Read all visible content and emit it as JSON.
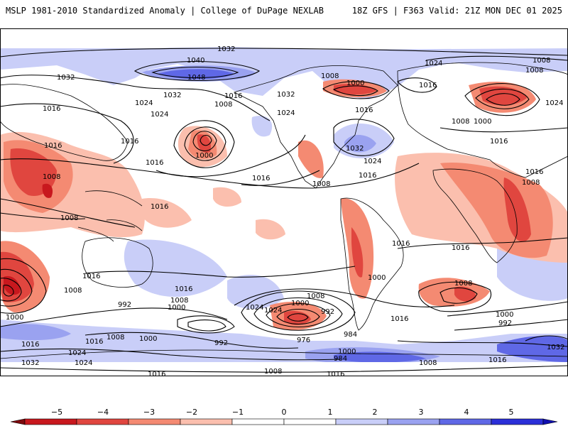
{
  "header": {
    "left_title": "MSLP 1981-2010 Standardized Anomaly | College of DuPage NEXLAB",
    "right_title": "18Z GFS | F363 Valid: 21Z MON DEC 01 2025"
  },
  "colors": {
    "neg_strong": "#c8181e",
    "neg_mid": "#e0463f",
    "neg_light": "#f48a72",
    "neg_pale": "#fbbfae",
    "pos_pale": "#c9cef8",
    "pos_light": "#9aa2f0",
    "pos_mid": "#5f68e6",
    "contour": "#000000",
    "coast": "#000000"
  },
  "colorbar": {
    "labels": [
      "−5",
      "−4",
      "−3",
      "−2",
      "−1",
      "0",
      "1",
      "2",
      "3",
      "4",
      "5"
    ],
    "colors": [
      "#7d0a0e",
      "#c8181e",
      "#e0463f",
      "#f48a72",
      "#fbbfae",
      "#ffffff",
      "#ffffff",
      "#c9cef8",
      "#9aa2f0",
      "#5f68e6",
      "#2b2fd8",
      "#1010b0"
    ]
  },
  "isobar_labels": [
    {
      "text": "1032"
    },
    {
      "text": "1040"
    },
    {
      "text": "1048"
    },
    {
      "text": "1032"
    },
    {
      "text": "1024"
    },
    {
      "text": "1016"
    },
    {
      "text": "1024"
    },
    {
      "text": "1032"
    },
    {
      "text": "1016"
    },
    {
      "text": "1008"
    },
    {
      "text": "1032"
    },
    {
      "text": "1024"
    },
    {
      "text": "1016"
    },
    {
      "text": "1000"
    },
    {
      "text": "1016"
    },
    {
      "text": "1008"
    },
    {
      "text": "1016"
    },
    {
      "text": "1000"
    },
    {
      "text": "1024"
    },
    {
      "text": "1016"
    },
    {
      "text": "1032"
    },
    {
      "text": "1024"
    },
    {
      "text": "1016"
    },
    {
      "text": "1008"
    },
    {
      "text": "1016"
    },
    {
      "text": "1008"
    },
    {
      "text": "1024"
    },
    {
      "text": "1016"
    },
    {
      "text": "1008"
    },
    {
      "text": "1016"
    },
    {
      "text": "1008"
    },
    {
      "text": "1000"
    },
    {
      "text": "1016"
    },
    {
      "text": "1008"
    },
    {
      "text": "1016"
    },
    {
      "text": "1008"
    },
    {
      "text": "1000"
    },
    {
      "text": "1016"
    },
    {
      "text": "1024"
    },
    {
      "text": "1008"
    },
    {
      "text": "1000"
    },
    {
      "text": "992"
    },
    {
      "text": "1000"
    },
    {
      "text": "992"
    },
    {
      "text": "1008"
    },
    {
      "text": "1016"
    },
    {
      "text": "1000"
    },
    {
      "text": "992"
    },
    {
      "text": "1024"
    },
    {
      "text": "1016"
    },
    {
      "text": "1008"
    },
    {
      "text": "1016"
    },
    {
      "text": "976"
    },
    {
      "text": "984"
    },
    {
      "text": "1000"
    },
    {
      "text": "1008"
    },
    {
      "text": "1016"
    },
    {
      "text": "1032"
    },
    {
      "text": "1024"
    },
    {
      "text": "1016"
    },
    {
      "text": "1008"
    },
    {
      "text": "1000"
    },
    {
      "text": "1016"
    },
    {
      "text": "1008"
    },
    {
      "text": "1000"
    },
    {
      "text": "992"
    },
    {
      "text": "1016"
    },
    {
      "text": "1032"
    },
    {
      "text": "984"
    },
    {
      "text": "1008"
    },
    {
      "text": "1016"
    },
    {
      "text": "1024"
    },
    {
      "text": "1016"
    },
    {
      "text": "1008"
    }
  ]
}
